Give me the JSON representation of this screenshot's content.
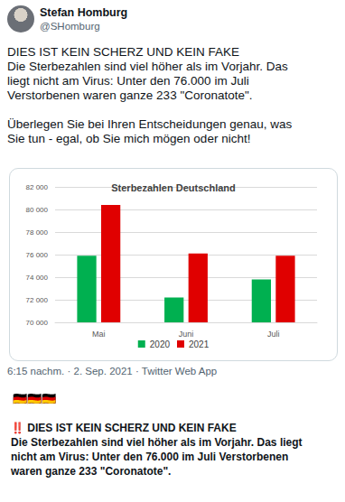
{
  "header": {
    "name": "Stefan Homburg",
    "handle": "@SHomburg"
  },
  "tweet": {
    "paragraphs": [
      [
        "DIES IST KEIN SCHERZ UND KEIN FAKE",
        "Die Sterbezahlen sind viel höher als im Vorjahr. Das",
        "liegt nicht am Virus: Unter den 76.000 im Juli",
        "Verstorbenen waren ganze 233 \"Coronatote\"."
      ],
      [
        "Überlegen Sie bei Ihren Entscheidungen genau, was",
        "Sie tun - egal, ob Sie mich mögen oder nicht!"
      ]
    ]
  },
  "chart_data": {
    "type": "bar",
    "title": "Sterbezahlen Deutschland",
    "categories": [
      "Mai",
      "Juni",
      "Juli"
    ],
    "series": [
      {
        "name": "2020",
        "color": "#00b050",
        "values": [
          75900,
          72200,
          73800
        ]
      },
      {
        "name": "2021",
        "color": "#e00000",
        "values": [
          80400,
          76100,
          75900
        ]
      }
    ],
    "ylim": [
      70000,
      82000
    ],
    "yticks": [
      {
        "value": 70000,
        "label": "70 000"
      },
      {
        "value": 72000,
        "label": "72 000"
      },
      {
        "value": 74000,
        "label": "74 000"
      },
      {
        "value": 76000,
        "label": "76 000"
      },
      {
        "value": 78000,
        "label": "78 000"
      },
      {
        "value": 80000,
        "label": "80 000"
      },
      {
        "value": 82000,
        "label": "82 000"
      }
    ],
    "grid": true,
    "legend": "bottom"
  },
  "footer": {
    "timestamp": "6:15 nachm. · 2. Sep. 2021 · Twitter Web App"
  },
  "repost": {
    "flags": "🇩🇪🇩🇪🇩🇪",
    "headline": "‼️ DIES IST KEIN SCHERZ UND KEIN FAKE",
    "lines": [
      "Die Sterbezahlen sind viel höher als im Vorjahr. Das liegt",
      "nicht am Virus: Unter den 76.000 im Juli Verstorbenen",
      "waren ganze 233 \"Coronatote\"."
    ]
  }
}
